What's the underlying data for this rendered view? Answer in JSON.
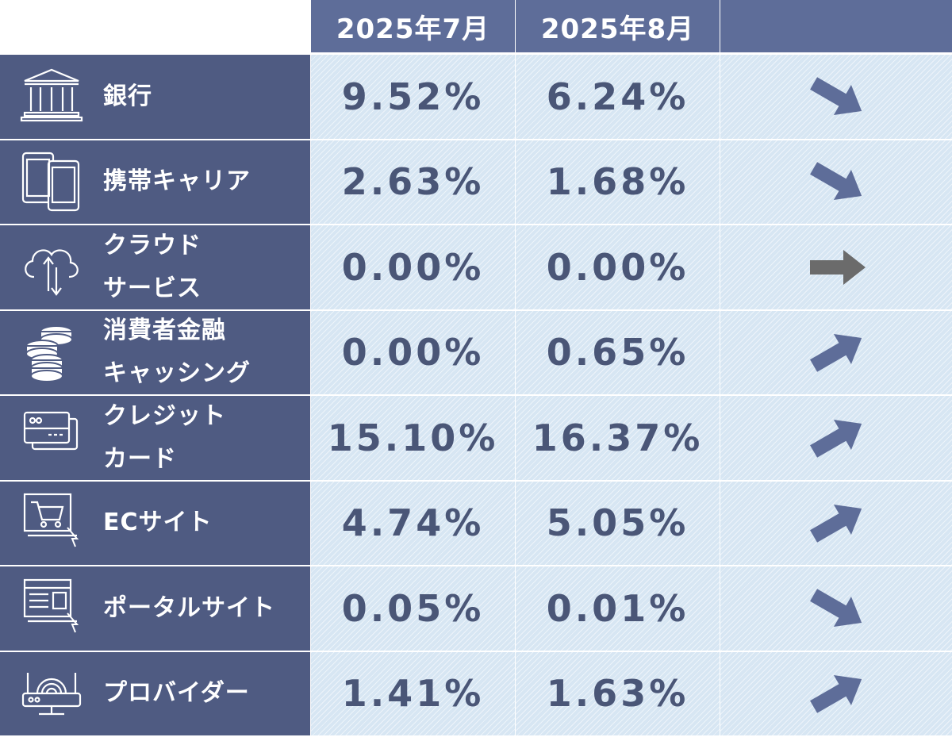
{
  "chart_data": {
    "type": "table",
    "columns": [
      "2025年7月",
      "2025年8月",
      ""
    ],
    "rows": [
      {
        "label": "銀行",
        "icon": "bank-icon",
        "jul": "9.52%",
        "aug": "6.24%",
        "trend": "down"
      },
      {
        "label": "携帯キャリア",
        "icon": "mobile-devices-icon",
        "jul": "2.63%",
        "aug": "1.68%",
        "trend": "down"
      },
      {
        "label": "クラウド\nサービス",
        "icon": "cloud-icon",
        "jul": "0.00%",
        "aug": "0.00%",
        "trend": "flat"
      },
      {
        "label": "消費者金融\nキャッシング",
        "icon": "coins-icon",
        "jul": "0.00%",
        "aug": "0.65%",
        "trend": "up"
      },
      {
        "label": "クレジット\nカード",
        "icon": "credit-card-icon",
        "jul": "15.10%",
        "aug": "16.37%",
        "trend": "up"
      },
      {
        "label": "ECサイト",
        "icon": "shopping-cart-icon",
        "jul": "4.74%",
        "aug": "5.05%",
        "trend": "up"
      },
      {
        "label": "ポータルサイト",
        "icon": "web-portal-icon",
        "jul": "0.05%",
        "aug": "0.01%",
        "trend": "down"
      },
      {
        "label": "プロバイダー",
        "icon": "router-icon",
        "jul": "1.41%",
        "aug": "1.63%",
        "trend": "up"
      }
    ]
  },
  "colors": {
    "header": "#5e6d99",
    "category": "#4f5b82",
    "cell": "#d7e6f3",
    "value_text": "#4a5677",
    "arrow_change": "#5e6d99",
    "arrow_flat": "#6b6b6b"
  }
}
